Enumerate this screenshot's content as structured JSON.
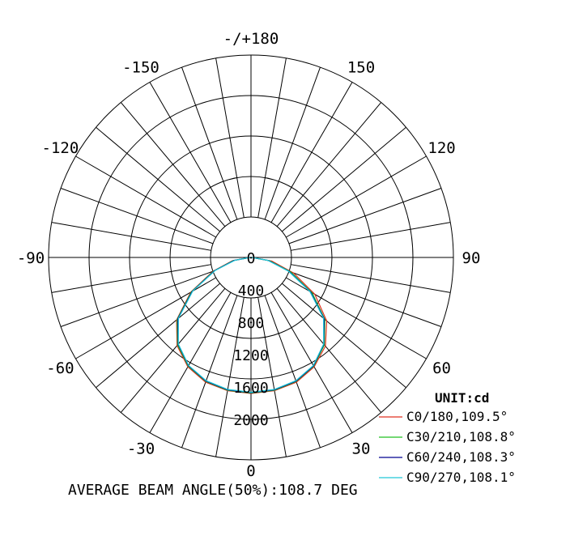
{
  "chart_data": {
    "type": "polar",
    "grid": true,
    "angle_tick_labels": [
      "-/+180",
      "150",
      "120",
      "90",
      "60",
      "30",
      "0",
      "-30",
      "-60",
      "-90",
      "-120",
      "-150"
    ],
    "radial_tick_labels": [
      "0",
      "400",
      "800",
      "1200",
      "1600",
      "2000"
    ],
    "radial_range": [
      0,
      2500
    ],
    "unit_label": "UNIT:cd",
    "legend_position": "bottom-right",
    "series": [
      {
        "name": "C0/180,109.5°",
        "color": "#e03020",
        "angles": [
          -90,
          -80,
          -70,
          -60,
          -50,
          -40,
          -30,
          -20,
          -10,
          0,
          10,
          20,
          30,
          40,
          50,
          60,
          70,
          80,
          90
        ],
        "values": [
          10,
          230,
          500,
          860,
          1200,
          1420,
          1560,
          1640,
          1670,
          1680,
          1670,
          1640,
          1560,
          1430,
          1220,
          910,
          560,
          260,
          10
        ]
      },
      {
        "name": "C30/210,108.8°",
        "color": "#20c020",
        "angles": [
          -90,
          -80,
          -70,
          -60,
          -50,
          -40,
          -30,
          -20,
          -10,
          0,
          10,
          20,
          30,
          40,
          50,
          60,
          70,
          80,
          90
        ],
        "values": [
          10,
          220,
          490,
          850,
          1190,
          1410,
          1550,
          1630,
          1665,
          1675,
          1665,
          1630,
          1550,
          1410,
          1190,
          870,
          520,
          230,
          10
        ]
      },
      {
        "name": "C60/240,108.3°",
        "color": "#000090",
        "angles": [
          -90,
          -80,
          -70,
          -60,
          -50,
          -40,
          -30,
          -20,
          -10,
          0,
          10,
          20,
          30,
          40,
          50,
          60,
          70,
          80,
          90
        ],
        "values": [
          10,
          210,
          480,
          840,
          1180,
          1400,
          1545,
          1625,
          1660,
          1670,
          1660,
          1625,
          1545,
          1400,
          1180,
          850,
          500,
          220,
          10
        ]
      },
      {
        "name": "C90/270,108.1°",
        "color": "#20c8d8",
        "angles": [
          -90,
          -80,
          -70,
          -60,
          -50,
          -40,
          -30,
          -20,
          -10,
          0,
          10,
          20,
          30,
          40,
          50,
          60,
          70,
          80,
          90
        ],
        "values": [
          10,
          200,
          470,
          830,
          1170,
          1395,
          1540,
          1620,
          1655,
          1665,
          1655,
          1620,
          1540,
          1395,
          1170,
          840,
          490,
          210,
          10
        ]
      }
    ],
    "footer": "AVERAGE BEAM ANGLE(50%):108.7 DEG"
  }
}
